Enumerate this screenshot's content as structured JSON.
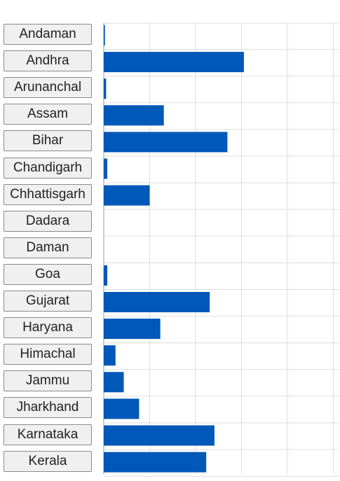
{
  "chart_data": {
    "type": "bar",
    "orientation": "horizontal",
    "title": "",
    "xlabel": "",
    "ylabel": "",
    "grid": true,
    "xlim": [
      0,
      100
    ],
    "categories": [
      "Andaman",
      "Andhra",
      "Arunanchal",
      "Assam",
      "Bihar",
      "Chandigarh",
      "Chhattisgarh",
      "Dadara",
      "Daman",
      "Goa",
      "Gujarat",
      "Haryana",
      "Himachal",
      "Jammu",
      "Jharkhand",
      "Karnataka",
      "Kerala"
    ],
    "values": [
      0.5,
      59.5,
      1,
      25.5,
      52.5,
      1.5,
      19.5,
      0,
      0,
      1.5,
      45,
      24,
      5,
      8.5,
      15,
      47,
      43.5
    ],
    "colors": {
      "bar": "#0058b8",
      "grid": "#dddddd",
      "axis": "#999999"
    }
  }
}
